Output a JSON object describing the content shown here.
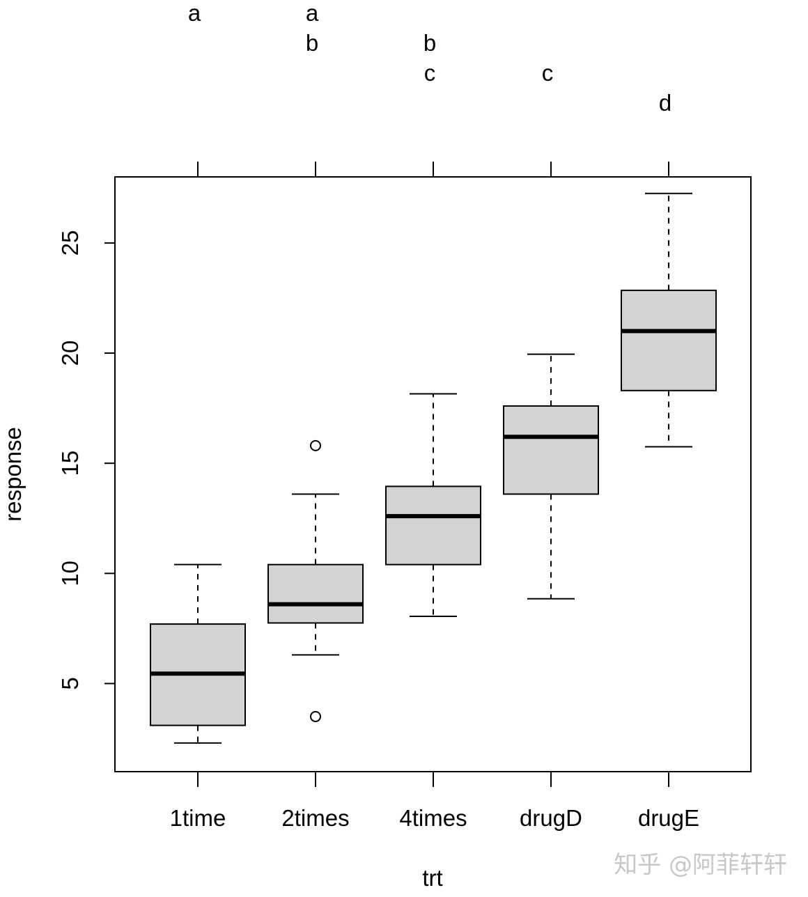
{
  "chart_data": {
    "type": "boxplot",
    "xlabel": "trt",
    "ylabel": "response",
    "categories": [
      "1time",
      "2times",
      "4times",
      "drugD",
      "drugE"
    ],
    "ylim": [
      1.0,
      28.0
    ],
    "yticks": [
      5,
      10,
      15,
      20,
      25
    ],
    "ytick_labels": [
      "5",
      "10",
      "15",
      "20",
      "25"
    ],
    "box_fill": "#d3d3d3",
    "boxes": [
      {
        "category": "1time",
        "whisker_low": 2.3,
        "q1": 3.1,
        "median": 5.45,
        "q3": 7.7,
        "whisker_high": 10.4,
        "outliers": []
      },
      {
        "category": "2times",
        "whisker_low": 6.3,
        "q1": 7.75,
        "median": 8.6,
        "q3": 10.4,
        "whisker_high": 13.6,
        "outliers": [
          15.8,
          3.5
        ]
      },
      {
        "category": "4times",
        "whisker_low": 8.05,
        "q1": 10.4,
        "median": 12.6,
        "q3": 13.95,
        "whisker_high": 18.15,
        "outliers": []
      },
      {
        "category": "drugD",
        "whisker_low": 8.85,
        "q1": 13.6,
        "median": 16.2,
        "q3": 17.6,
        "whisker_high": 19.95,
        "outliers": []
      },
      {
        "category": "drugE",
        "whisker_low": 15.75,
        "q1": 18.3,
        "median": 21.0,
        "q3": 22.85,
        "whisker_high": 27.25,
        "outliers": []
      }
    ],
    "group_letters": [
      {
        "category": "1time",
        "letters": [
          "a"
        ]
      },
      {
        "category": "2times",
        "letters": [
          "a",
          "b"
        ]
      },
      {
        "category": "4times",
        "letters": [
          "b",
          "c"
        ]
      },
      {
        "category": "drugD",
        "letters": [
          "c"
        ]
      },
      {
        "category": "drugE",
        "letters": [
          "d"
        ]
      }
    ],
    "letter_rows": [
      "a",
      "b",
      "c",
      "d"
    ]
  },
  "watermark": "知乎 @阿菲轩轩"
}
